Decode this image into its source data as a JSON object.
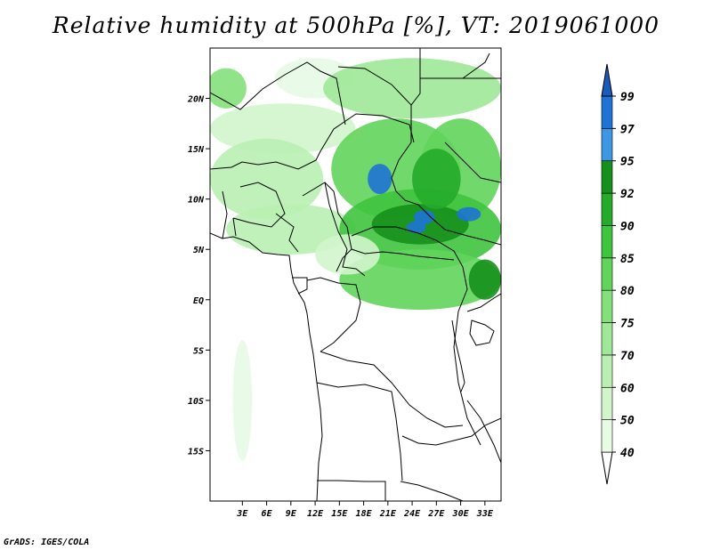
{
  "title": "Relative humidity at 500hPa [%], VT: 2019061000",
  "credit": "GrADS: IGES/COLA",
  "map": {
    "lon_range": [
      -1,
      35
    ],
    "lat_range": [
      -20,
      25
    ],
    "x_ticks": [
      {
        "lon": 3,
        "label": "3E"
      },
      {
        "lon": 6,
        "label": "6E"
      },
      {
        "lon": 9,
        "label": "9E"
      },
      {
        "lon": 12,
        "label": "12E"
      },
      {
        "lon": 15,
        "label": "15E"
      },
      {
        "lon": 18,
        "label": "18E"
      },
      {
        "lon": 21,
        "label": "21E"
      },
      {
        "lon": 24,
        "label": "24E"
      },
      {
        "lon": 27,
        "label": "27E"
      },
      {
        "lon": 30,
        "label": "30E"
      },
      {
        "lon": 33,
        "label": "33E"
      }
    ],
    "y_ticks": [
      {
        "lat": 20,
        "label": "20N"
      },
      {
        "lat": 15,
        "label": "15N"
      },
      {
        "lat": 10,
        "label": "10N"
      },
      {
        "lat": 5,
        "label": "5N"
      },
      {
        "lat": 0,
        "label": "EQ"
      },
      {
        "lat": -5,
        "label": "5S"
      },
      {
        "lat": -10,
        "label": "10S"
      },
      {
        "lat": -15,
        "label": "15S"
      }
    ],
    "humidity_blobs": [
      {
        "lon": 1,
        "lat": 21,
        "rx": 2.5,
        "ry": 2,
        "level": 75
      },
      {
        "lon": 8,
        "lat": 17,
        "rx": 9,
        "ry": 2.5,
        "level": 50
      },
      {
        "lon": 6,
        "lat": 12,
        "rx": 7,
        "ry": 4,
        "level": 60
      },
      {
        "lon": 9,
        "lat": 7,
        "rx": 8,
        "ry": 2.5,
        "level": 60
      },
      {
        "lon": 12,
        "lat": 22,
        "rx": 5,
        "ry": 2,
        "level": 40
      },
      {
        "lon": 24,
        "lat": 21,
        "rx": 11,
        "ry": 3,
        "level": 70
      },
      {
        "lon": 22,
        "lat": 13,
        "rx": 8,
        "ry": 5,
        "level": 80
      },
      {
        "lon": 30,
        "lat": 13,
        "rx": 5,
        "ry": 5,
        "level": 80
      },
      {
        "lon": 25,
        "lat": 7,
        "rx": 10,
        "ry": 4,
        "level": 85
      },
      {
        "lon": 25,
        "lat": 2,
        "rx": 10,
        "ry": 3,
        "level": 80
      },
      {
        "lon": 25,
        "lat": 7.5,
        "rx": 6,
        "ry": 2,
        "level": 92
      },
      {
        "lon": 27,
        "lat": 12,
        "rx": 3,
        "ry": 3,
        "level": 90
      },
      {
        "lon": 20,
        "lat": 12,
        "rx": 1.5,
        "ry": 1.5,
        "level": 97
      },
      {
        "lon": 25.5,
        "lat": 8.2,
        "rx": 1.3,
        "ry": 0.7,
        "level": 97
      },
      {
        "lon": 24.5,
        "lat": 7.2,
        "rx": 1.2,
        "ry": 0.6,
        "level": 97
      },
      {
        "lon": 31,
        "lat": 8.5,
        "rx": 1.5,
        "ry": 0.7,
        "level": 97
      },
      {
        "lon": 33,
        "lat": 2,
        "rx": 2,
        "ry": 2,
        "level": 92
      },
      {
        "lon": 3,
        "lat": -10,
        "rx": 1.2,
        "ry": 6,
        "level": 40
      },
      {
        "lon": 16,
        "lat": 4.5,
        "rx": 4,
        "ry": 2,
        "level": 50
      }
    ]
  },
  "colorbar": {
    "levels": [
      {
        "label": "40",
        "color": "#e7fbe5"
      },
      {
        "label": "50",
        "color": "#d2f5cc"
      },
      {
        "label": "60",
        "color": "#baefb2"
      },
      {
        "label": "70",
        "color": "#9fe897"
      },
      {
        "label": "75",
        "color": "#84e07a"
      },
      {
        "label": "80",
        "color": "#62d45c"
      },
      {
        "label": "85",
        "color": "#3fc43f"
      },
      {
        "label": "90",
        "color": "#25ab2a"
      },
      {
        "label": "92",
        "color": "#16901c"
      },
      {
        "label": "95",
        "color": "#3e97e5"
      },
      {
        "label": "97",
        "color": "#1f73d4"
      },
      {
        "label": "99",
        "color": "#1a5cbd"
      }
    ],
    "below_color": "#ffffff",
    "above_color": "#1a5cbd"
  }
}
